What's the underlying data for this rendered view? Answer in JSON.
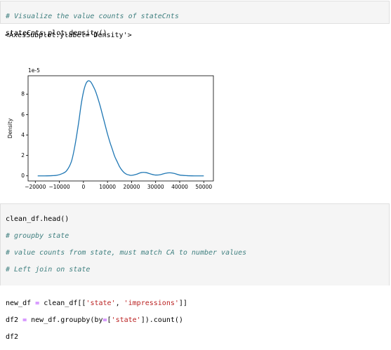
{
  "cell1": {
    "comment": "# Visualize the value counts of stateCnts",
    "code": "stateCnts.plot.density()"
  },
  "output": {
    "repr": "<AxesSubplot:ylabel='Density'>"
  },
  "chart_data": {
    "type": "line",
    "title": "",
    "xlabel": "",
    "ylabel": "Density",
    "scale_label": "1e-5",
    "xlim": [
      -23000,
      54000
    ],
    "ylim": [
      -0.5,
      9.8
    ],
    "xticks": [
      -20000,
      -10000,
      0,
      10000,
      20000,
      30000,
      40000,
      50000
    ],
    "xtick_labels": [
      "−20000",
      "−10000",
      "0",
      "10000",
      "20000",
      "30000",
      "40000",
      "50000"
    ],
    "yticks": [
      0,
      2,
      4,
      6,
      8
    ],
    "ytick_labels": [
      "0",
      "2",
      "4",
      "6",
      "8"
    ],
    "grid": false,
    "color": "#1f77b4",
    "series": [
      {
        "x": [
          -19000,
          -16000,
          -13000,
          -11000,
          -9000,
          -7000,
          -5000,
          -3500,
          -2000,
          -1000,
          0,
          1000,
          2000,
          3000,
          4000,
          5000,
          6000,
          7000,
          8000,
          9000,
          10000,
          11000,
          12000,
          13000,
          14000,
          15000,
          16000,
          17000,
          18000,
          19000,
          20000,
          22000,
          24000,
          26000,
          28000,
          30000,
          32000,
          34000,
          36000,
          38000,
          40000,
          43000,
          46000,
          50000
        ],
        "y": [
          0.0,
          0.0,
          0.02,
          0.06,
          0.2,
          0.5,
          1.4,
          3.0,
          5.2,
          6.9,
          8.2,
          9.0,
          9.3,
          9.2,
          8.8,
          8.3,
          7.6,
          6.8,
          5.9,
          5.0,
          4.1,
          3.3,
          2.6,
          1.9,
          1.4,
          0.9,
          0.55,
          0.3,
          0.15,
          0.08,
          0.05,
          0.15,
          0.32,
          0.32,
          0.18,
          0.08,
          0.12,
          0.25,
          0.3,
          0.22,
          0.08,
          0.02,
          0.0,
          0.0
        ]
      }
    ]
  },
  "cell2": {
    "l1": "clean_df.head()",
    "l2": "# groupby state",
    "l3": "# value counts from state, must match CA to number values",
    "l4": "# Left join on state",
    "l6_a": "new_df ",
    "l6_op": "=",
    "l6_b": " clean_df[[",
    "l6_s1": "'state'",
    "l6_c": ", ",
    "l6_s2": "'impressions'",
    "l6_d": "]]",
    "l7_a": "df2 ",
    "l7_op": "=",
    "l7_b": " new_df.groupby(by",
    "l7_op2": "=",
    "l7_c": "[",
    "l7_s1": "'state'",
    "l7_d": "]).count()",
    "l8": "df2"
  }
}
